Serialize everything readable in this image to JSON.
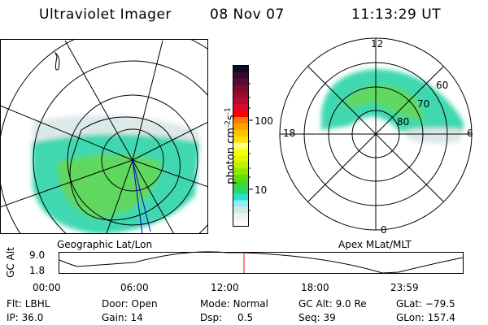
{
  "header": {
    "instrument": "Ultraviolet Imager",
    "date": "08 Nov 07",
    "time": "11:13:29 UT"
  },
  "colorbar": {
    "label": "photon cm",
    "label_sup1": "-2",
    "label_mid": "s",
    "label_sup2": "-1",
    "ticks": [
      "100",
      "10"
    ],
    "colors": [
      "#0a0a2a",
      "#3a0a2a",
      "#5a0a30",
      "#7a0a30",
      "#9a0a30",
      "#b80a30",
      "#d80a30",
      "#ff0000",
      "#ff7800",
      "#ffa000",
      "#ffc000",
      "#ffe000",
      "#ffff80",
      "#f8ff00",
      "#e0f800",
      "#c0f000",
      "#90e800",
      "#60e000",
      "#40d840",
      "#28d868",
      "#28e0d8",
      "#90f0f0",
      "#d0e8e8",
      "#e8f4f0",
      "#fafafa"
    ]
  },
  "left_map": {
    "caption": "Geographic Lat/Lon"
  },
  "right_map": {
    "caption": "Apex MLat/MLT",
    "mlt_labels": [
      "12",
      "18",
      "6",
      "0"
    ],
    "mlat_labels": [
      "60",
      "70",
      "80"
    ]
  },
  "altitude_plot": {
    "ylabel": "GC Alt",
    "yticks": [
      "9.0",
      "1.8"
    ],
    "xticks": [
      "00:00",
      "06:00",
      "12:00",
      "18:00",
      "23:59"
    ],
    "current_time_marker_color": "#ff0000"
  },
  "info": {
    "filter": "Flt: LBHL",
    "ip": "IP: 36.0",
    "door": "Door: Open",
    "gain": "Gain: 14",
    "mode": "Mode: Normal",
    "dsp_label": "Dsp:",
    "dsp_value": "0.5",
    "gc_alt": "GC Alt: 9.0 Re",
    "seq": "Seq: 39",
    "glat": "GLat: −79.5",
    "glon": "GLon: 157.4"
  }
}
